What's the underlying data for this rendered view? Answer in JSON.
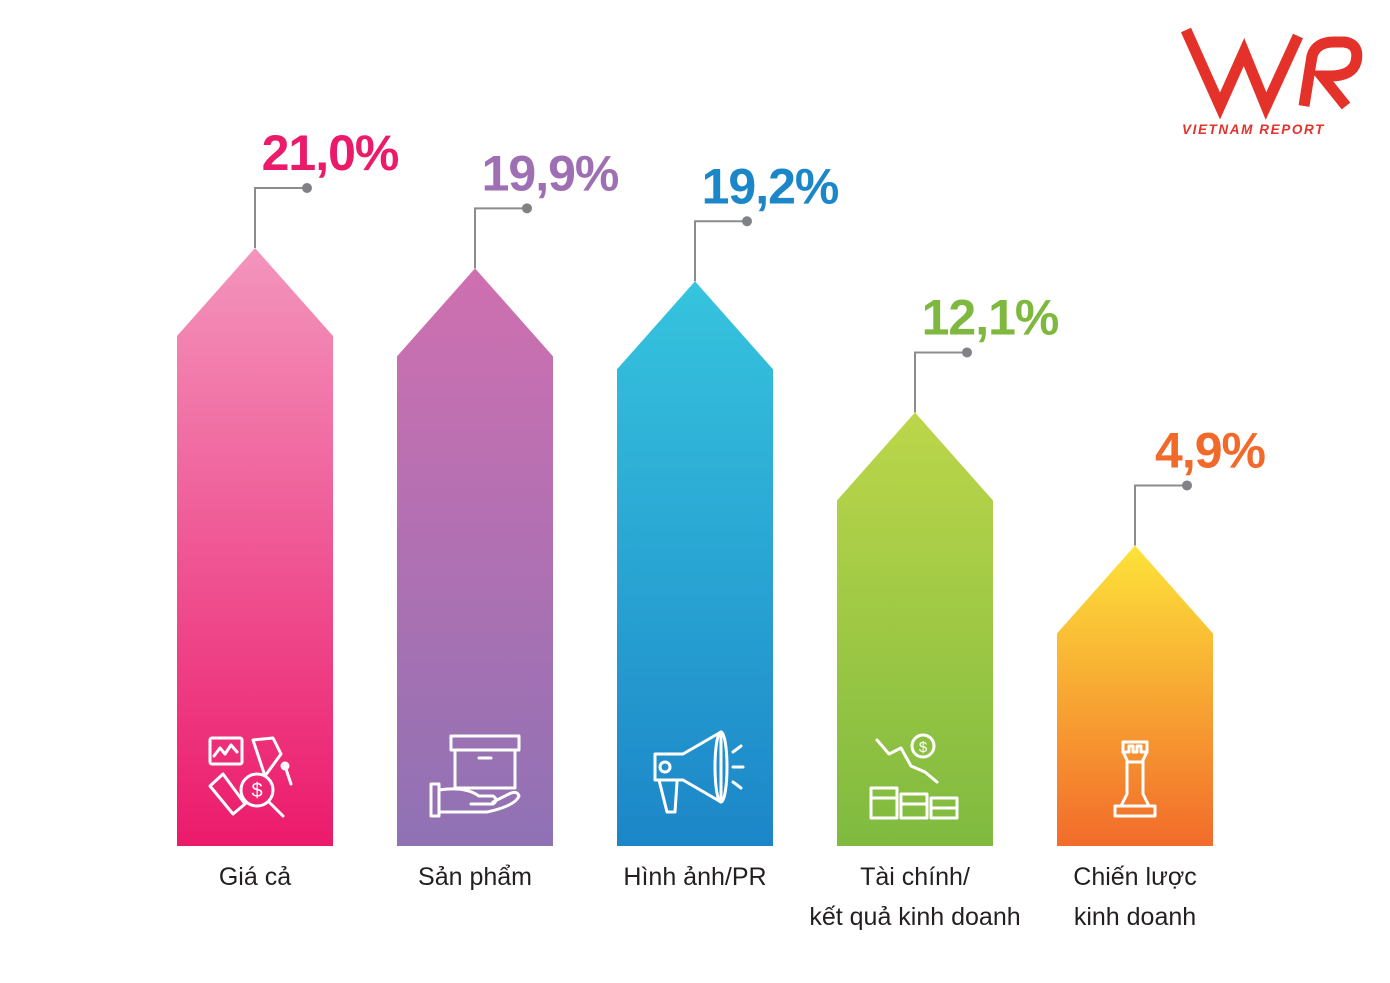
{
  "brand": {
    "logo_mark": "VNR",
    "logo_text": "VIETNAM REPORT",
    "color": "#e4322b"
  },
  "chart_data": {
    "type": "bar",
    "categories": [
      "Giá cả",
      "Sản phẩm",
      "Hình ảnh/PR",
      "Tài chính/ kết quả kinh doanh",
      "Chiến lược kinh doanh"
    ],
    "values": [
      21.0,
      19.9,
      19.2,
      12.1,
      4.9
    ],
    "value_labels": [
      "21,0%",
      "19,9%",
      "19,2%",
      "12,1%",
      "4,9%"
    ],
    "category_lines": [
      [
        "Giá cả"
      ],
      [
        "Sản phẩm"
      ],
      [
        "Hình ảnh/PR"
      ],
      [
        "Tài chính/",
        "kết  quả kinh doanh"
      ],
      [
        "Chiến lược",
        "kinh doanh"
      ]
    ],
    "colors": [
      {
        "top": "#f395bd",
        "bottom": "#ec1a6b",
        "label": "#ec1a6b"
      },
      {
        "top": "#cf6fb0",
        "bottom": "#8f72b4",
        "label": "#9e6fb3"
      },
      {
        "top": "#36c4de",
        "bottom": "#1c86c8",
        "label": "#1b87c9"
      },
      {
        "top": "#bcd64a",
        "bottom": "#7fba3f",
        "label": "#7fb83e"
      },
      {
        "top": "#fde33a",
        "bottom": "#f26b2b",
        "label": "#f26a2a"
      }
    ],
    "icons": [
      "price-analysis-icon",
      "product-box-hand-icon",
      "megaphone-icon",
      "finance-money-icon",
      "chess-rook-icon"
    ],
    "ylim": [
      0,
      21.0
    ],
    "title": "",
    "xlabel": "",
    "ylabel": ""
  }
}
